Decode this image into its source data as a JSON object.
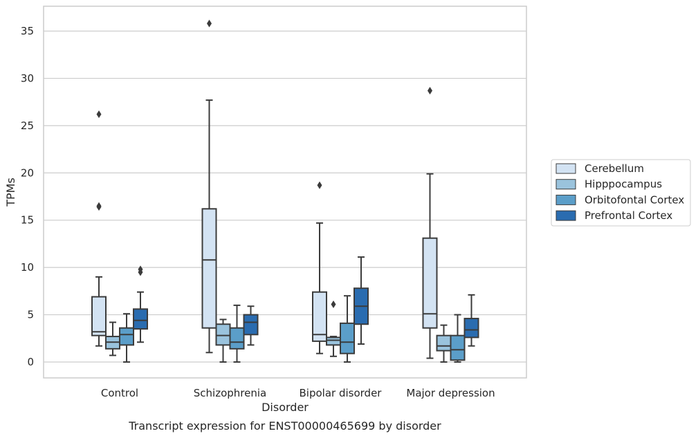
{
  "chart_data": {
    "type": "box",
    "title": "",
    "caption": "Transcript expression for ENST00000465699 by disorder",
    "xlabel": "Disorder",
    "ylabel": "TPMs",
    "ylim": [
      -1.7,
      37.3
    ],
    "yticks": [
      0,
      5,
      10,
      15,
      20,
      25,
      30,
      35
    ],
    "grid": "horizontal",
    "legend_position": "right",
    "categories": [
      "Control",
      "Schizophrenia",
      "Bipolar disorder",
      "Major depression"
    ],
    "series": [
      {
        "name": "Cerebellum",
        "color": "#d3e3f3",
        "boxes": [
          {
            "whisker_low": 1.7,
            "q1": 2.8,
            "median": 3.2,
            "q3": 6.9,
            "whisker_high": 9.0,
            "outliers": [
              16.4,
              16.5,
              26.2
            ]
          },
          {
            "whisker_low": 1.0,
            "q1": 3.6,
            "median": 10.8,
            "q3": 16.2,
            "whisker_high": 27.7,
            "outliers": [
              35.8
            ]
          },
          {
            "whisker_low": 0.9,
            "q1": 2.2,
            "median": 2.9,
            "q3": 7.4,
            "whisker_high": 14.7,
            "outliers": [
              18.7
            ]
          },
          {
            "whisker_low": 0.4,
            "q1": 3.6,
            "median": 5.1,
            "q3": 13.1,
            "whisker_high": 19.9,
            "outliers": [
              28.7
            ]
          }
        ]
      },
      {
        "name": "Hipppocampus",
        "color": "#9ac3dd",
        "boxes": [
          {
            "whisker_low": 0.7,
            "q1": 1.4,
            "median": 2.1,
            "q3": 2.7,
            "whisker_high": 4.2,
            "outliers": []
          },
          {
            "whisker_low": 0.0,
            "q1": 1.8,
            "median": 2.8,
            "q3": 4.0,
            "whisker_high": 4.5,
            "outliers": []
          },
          {
            "whisker_low": 0.6,
            "q1": 1.8,
            "median": 2.3,
            "q3": 2.6,
            "whisker_high": 2.7,
            "outliers": [
              6.1
            ]
          },
          {
            "whisker_low": 0.0,
            "q1": 1.2,
            "median": 1.7,
            "q3": 2.8,
            "whisker_high": 3.9,
            "outliers": []
          }
        ]
      },
      {
        "name": "Orbitofontal Cortex",
        "color": "#5b9ec9",
        "boxes": [
          {
            "whisker_low": 0.0,
            "q1": 1.8,
            "median": 2.9,
            "q3": 3.6,
            "whisker_high": 5.1,
            "outliers": []
          },
          {
            "whisker_low": 0.0,
            "q1": 1.4,
            "median": 2.1,
            "q3": 3.6,
            "whisker_high": 6.0,
            "outliers": []
          },
          {
            "whisker_low": 0.0,
            "q1": 0.9,
            "median": 2.1,
            "q3": 4.1,
            "whisker_high": 7.0,
            "outliers": []
          },
          {
            "whisker_low": 0.0,
            "q1": 0.2,
            "median": 1.3,
            "q3": 2.8,
            "whisker_high": 5.0,
            "outliers": []
          }
        ]
      },
      {
        "name": "Prefrontal Cortex",
        "color": "#2a6cb0",
        "boxes": [
          {
            "whisker_low": 2.1,
            "q1": 3.5,
            "median": 4.4,
            "q3": 5.6,
            "whisker_high": 7.4,
            "outliers": [
              9.5,
              9.8
            ]
          },
          {
            "whisker_low": 1.8,
            "q1": 2.9,
            "median": 4.2,
            "q3": 5.0,
            "whisker_high": 5.9,
            "outliers": []
          },
          {
            "whisker_low": 1.9,
            "q1": 4.0,
            "median": 5.9,
            "q3": 7.8,
            "whisker_high": 11.1,
            "outliers": []
          },
          {
            "whisker_low": 1.7,
            "q1": 2.6,
            "median": 3.4,
            "q3": 4.6,
            "whisker_high": 7.1,
            "outliers": []
          }
        ]
      }
    ]
  }
}
